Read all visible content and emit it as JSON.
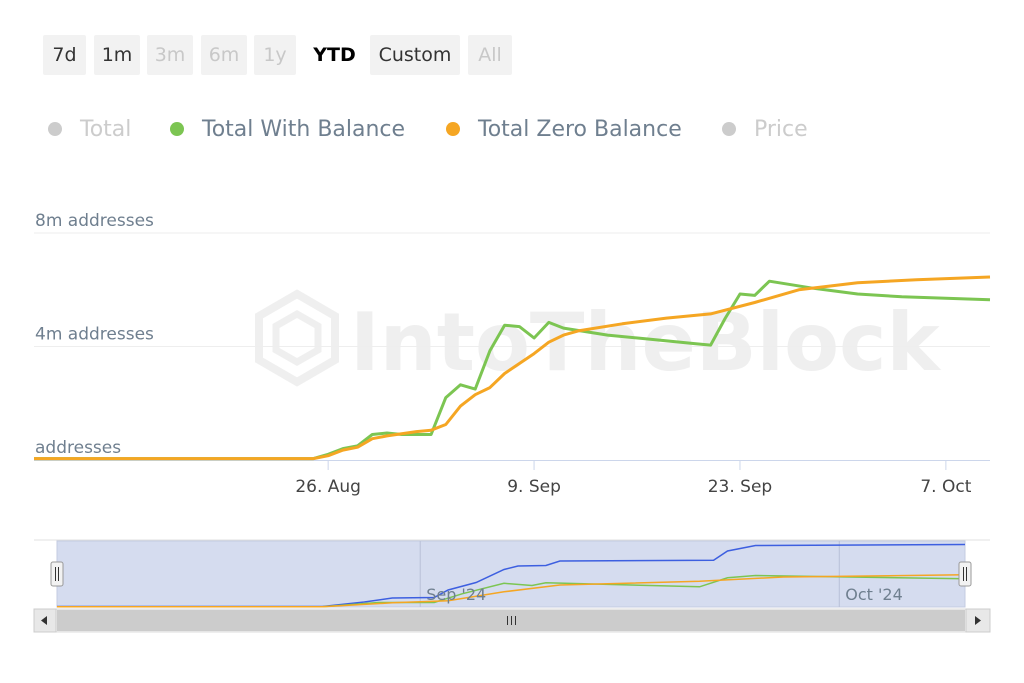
{
  "range_selector": {
    "buttons": [
      {
        "label": "7d",
        "state": "enabled"
      },
      {
        "label": "1m",
        "state": "enabled"
      },
      {
        "label": "3m",
        "state": "disabled"
      },
      {
        "label": "6m",
        "state": "disabled"
      },
      {
        "label": "1y",
        "state": "disabled"
      },
      {
        "label": "YTD",
        "state": "selected"
      },
      {
        "label": "Custom",
        "state": "enabled"
      },
      {
        "label": "All",
        "state": "disabled"
      }
    ]
  },
  "legend": {
    "items": [
      {
        "label": "Total",
        "color": "#cccccc",
        "visible": false
      },
      {
        "label": "Total With Balance",
        "color": "#7cc552",
        "visible": true
      },
      {
        "label": "Total Zero Balance",
        "color": "#f5a623",
        "visible": true
      },
      {
        "label": "Price",
        "color": "#cccccc",
        "visible": false
      }
    ]
  },
  "watermark": "IntoTheBlock",
  "chart_data": {
    "type": "line",
    "title": "",
    "xlabel": "",
    "ylabel": "",
    "x_axis": {
      "range": [
        "2024-08-06",
        "2024-10-10"
      ],
      "ticks": [
        {
          "date": "2024-08-26",
          "label": "26. Aug"
        },
        {
          "date": "2024-09-09",
          "label": "9. Sep"
        },
        {
          "date": "2024-09-23",
          "label": "23. Sep"
        },
        {
          "date": "2024-10-07",
          "label": "7. Oct"
        }
      ]
    },
    "y_axis": {
      "range": [
        0,
        8000000
      ],
      "ticks": [
        {
          "value": 0,
          "label": "addresses"
        },
        {
          "value": 4000000,
          "label": "4m addresses"
        },
        {
          "value": 8000000,
          "label": "8m addresses"
        }
      ]
    },
    "grid": true,
    "legend_position": "top",
    "series": [
      {
        "name": "Total With Balance",
        "color": "#7cc552",
        "points": [
          [
            "2024-08-06",
            50000
          ],
          [
            "2024-08-25",
            50000
          ],
          [
            "2024-08-26",
            200000
          ],
          [
            "2024-08-27",
            400000
          ],
          [
            "2024-08-28",
            500000
          ],
          [
            "2024-08-29",
            900000
          ],
          [
            "2024-08-30",
            950000
          ],
          [
            "2024-08-31",
            900000
          ],
          [
            "2024-09-01",
            900000
          ],
          [
            "2024-09-02",
            900000
          ],
          [
            "2024-09-03",
            2200000
          ],
          [
            "2024-09-04",
            2650000
          ],
          [
            "2024-09-05",
            2500000
          ],
          [
            "2024-09-06",
            3850000
          ],
          [
            "2024-09-07",
            4750000
          ],
          [
            "2024-09-08",
            4700000
          ],
          [
            "2024-09-09",
            4300000
          ],
          [
            "2024-09-10",
            4850000
          ],
          [
            "2024-09-11",
            4650000
          ],
          [
            "2024-09-14",
            4400000
          ],
          [
            "2024-09-17",
            4250000
          ],
          [
            "2024-09-20",
            4100000
          ],
          [
            "2024-09-21",
            4050000
          ],
          [
            "2024-09-22",
            5000000
          ],
          [
            "2024-09-23",
            5850000
          ],
          [
            "2024-09-24",
            5800000
          ],
          [
            "2024-09-25",
            6300000
          ],
          [
            "2024-09-28",
            6050000
          ],
          [
            "2024-10-01",
            5850000
          ],
          [
            "2024-10-04",
            5750000
          ],
          [
            "2024-10-10",
            5650000
          ]
        ]
      },
      {
        "name": "Total Zero Balance",
        "color": "#f5a623",
        "points": [
          [
            "2024-08-06",
            50000
          ],
          [
            "2024-08-25",
            50000
          ],
          [
            "2024-08-26",
            150000
          ],
          [
            "2024-08-27",
            350000
          ],
          [
            "2024-08-28",
            450000
          ],
          [
            "2024-08-29",
            750000
          ],
          [
            "2024-08-30",
            850000
          ],
          [
            "2024-09-01",
            1000000
          ],
          [
            "2024-09-02",
            1050000
          ],
          [
            "2024-09-03",
            1250000
          ],
          [
            "2024-09-04",
            1900000
          ],
          [
            "2024-09-05",
            2300000
          ],
          [
            "2024-09-06",
            2550000
          ],
          [
            "2024-09-07",
            3050000
          ],
          [
            "2024-09-08",
            3400000
          ],
          [
            "2024-09-09",
            3750000
          ],
          [
            "2024-09-10",
            4150000
          ],
          [
            "2024-09-11",
            4400000
          ],
          [
            "2024-09-12",
            4550000
          ],
          [
            "2024-09-15",
            4800000
          ],
          [
            "2024-09-18",
            5000000
          ],
          [
            "2024-09-21",
            5150000
          ],
          [
            "2024-09-24",
            5550000
          ],
          [
            "2024-09-27",
            6000000
          ],
          [
            "2024-10-01",
            6250000
          ],
          [
            "2024-10-05",
            6350000
          ],
          [
            "2024-10-10",
            6450000
          ]
        ]
      }
    ],
    "navigator": {
      "labels": [
        {
          "date": "2024-09-01",
          "label": "Sep '24"
        },
        {
          "date": "2024-10-01",
          "label": "Oct '24"
        }
      ],
      "series": [
        {
          "name": "Total",
          "color": "#3d5fe0",
          "points": [
            [
              "2024-08-06",
              100000
            ],
            [
              "2024-08-25",
              100000
            ],
            [
              "2024-08-28",
              1000000
            ],
            [
              "2024-08-30",
              1800000
            ],
            [
              "2024-09-02",
              1900000
            ],
            [
              "2024-09-03",
              3400000
            ],
            [
              "2024-09-05",
              4900000
            ],
            [
              "2024-09-07",
              7500000
            ],
            [
              "2024-09-08",
              8200000
            ],
            [
              "2024-09-10",
              8300000
            ],
            [
              "2024-09-11",
              9200000
            ],
            [
              "2024-09-22",
              9350000
            ],
            [
              "2024-09-23",
              11200000
            ],
            [
              "2024-09-25",
              12300000
            ],
            [
              "2024-10-10",
              12500000
            ]
          ]
        },
        {
          "name": "Total With Balance",
          "color": "#7cc552",
          "points": [
            [
              "2024-08-06",
              50000
            ],
            [
              "2024-08-25",
              50000
            ],
            [
              "2024-08-29",
              900000
            ],
            [
              "2024-09-02",
              900000
            ],
            [
              "2024-09-04",
              2650000
            ],
            [
              "2024-09-07",
              4750000
            ],
            [
              "2024-09-09",
              4300000
            ],
            [
              "2024-09-10",
              4850000
            ],
            [
              "2024-09-21",
              4050000
            ],
            [
              "2024-09-23",
              5850000
            ],
            [
              "2024-09-25",
              6300000
            ],
            [
              "2024-10-10",
              5650000
            ]
          ]
        },
        {
          "name": "Total Zero Balance",
          "color": "#f5a623",
          "points": [
            [
              "2024-08-06",
              50000
            ],
            [
              "2024-08-25",
              50000
            ],
            [
              "2024-08-30",
              850000
            ],
            [
              "2024-09-03",
              1250000
            ],
            [
              "2024-09-07",
              3050000
            ],
            [
              "2024-09-11",
              4400000
            ],
            [
              "2024-09-21",
              5150000
            ],
            [
              "2024-09-27",
              6000000
            ],
            [
              "2024-10-10",
              6450000
            ]
          ]
        }
      ]
    }
  }
}
